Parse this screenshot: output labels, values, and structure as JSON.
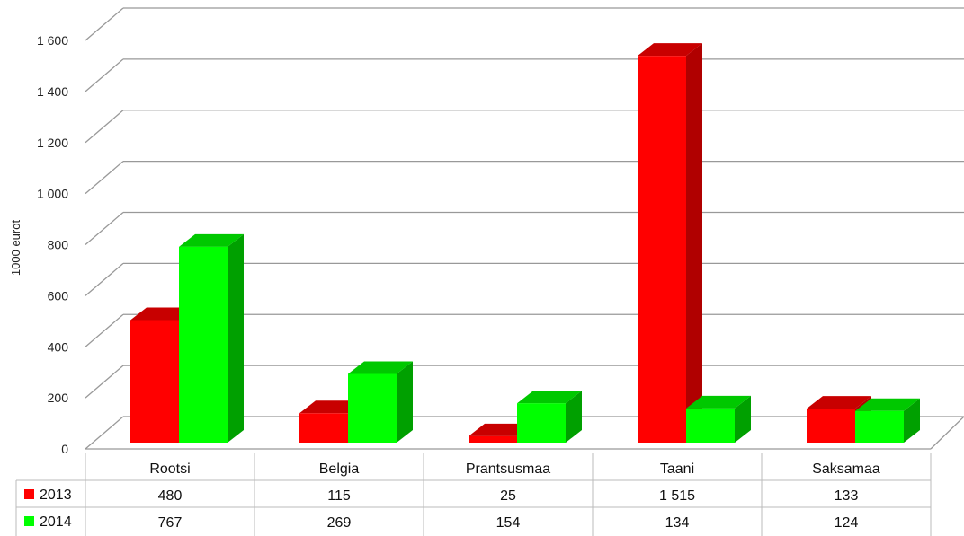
{
  "chart_data": {
    "type": "bar",
    "style": "3d-clustered-column-with-data-table",
    "ylabel": "1000 eurot",
    "ylim": [
      0,
      1600
    ],
    "yticks": [
      0,
      200,
      400,
      600,
      800,
      1000,
      1200,
      1400,
      1600
    ],
    "ytick_labels": [
      "0",
      "200",
      "400",
      "600",
      "800",
      "1 000",
      "1 200",
      "1 400",
      "1 600"
    ],
    "grid": true,
    "categories": [
      "Rootsi",
      "Belgia",
      "Prantsusmaa",
      "Taani",
      "Saksamaa"
    ],
    "series": [
      {
        "name": "2013",
        "color": "#ff0000",
        "side_color": "#b00000",
        "top_color": "#c80000",
        "values": [
          480,
          115,
          25,
          1515,
          133
        ],
        "value_labels": [
          "480",
          "115",
          "25",
          "1 515",
          "133"
        ]
      },
      {
        "name": "2014",
        "color": "#00ff00",
        "side_color": "#00a000",
        "top_color": "#00c800",
        "values": [
          767,
          269,
          154,
          134,
          124
        ],
        "value_labels": [
          "767",
          "269",
          "154",
          "134",
          "124"
        ]
      }
    ],
    "legend": "data-table-left"
  }
}
